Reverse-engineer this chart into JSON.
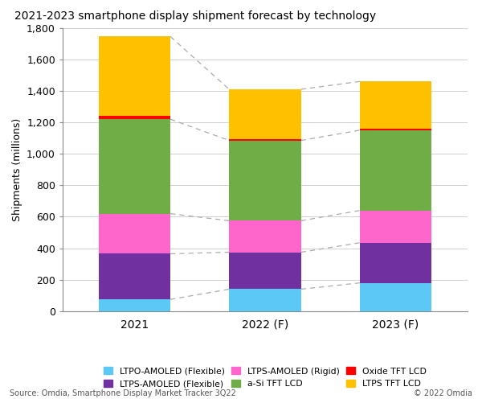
{
  "title": "2021-2023 smartphone display shipment forecast by technology",
  "ylabel": "Shipments (millions)",
  "categories": [
    "2021",
    "2022 (F)",
    "2023 (F)"
  ],
  "series": {
    "LTPO-AMOLED (Flexible)": {
      "values": [
        75,
        140,
        180
      ],
      "color": "#5BC8F5"
    },
    "LTPS-AMOLED (Flexible)": {
      "values": [
        290,
        235,
        255
      ],
      "color": "#7030A0"
    },
    "LTPS-AMOLED (Rigid)": {
      "values": [
        255,
        200,
        205
      ],
      "color": "#FF66CC"
    },
    "a-Si TFT LCD": {
      "values": [
        600,
        510,
        510
      ],
      "color": "#70AD47"
    },
    "Oxide TFT LCD": {
      "values": [
        22,
        8,
        12
      ],
      "color": "#FF0000"
    },
    "LTPS TFT LCD": {
      "values": [
        503,
        317,
        298
      ],
      "color": "#FFC000"
    }
  },
  "ylim": [
    0,
    1800
  ],
  "yticks": [
    0,
    200,
    400,
    600,
    800,
    1000,
    1200,
    1400,
    1600,
    1800
  ],
  "source_text": "Source: Omdia, Smartphone Display Market Tracker 3Q22",
  "copyright_text": "© 2022 Omdia",
  "background_color": "#FFFFFF",
  "dashed_line_color": "#AAAAAA",
  "bar_width": 0.55,
  "dashed_boundaries": [
    0,
    1,
    2,
    3,
    5
  ]
}
